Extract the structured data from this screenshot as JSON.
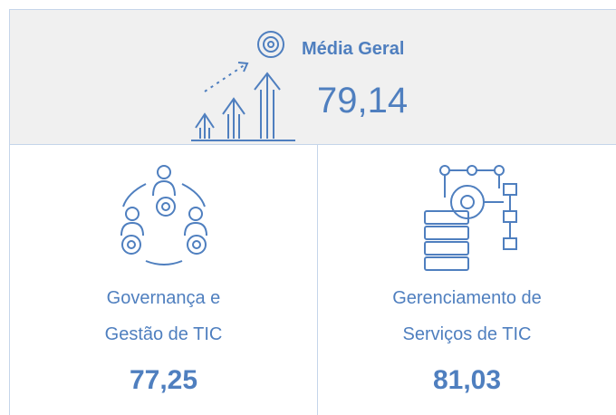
{
  "header": {
    "title": "Média Geral",
    "value": "79,14"
  },
  "cards": [
    {
      "label_lines": [
        "Governança e",
        "Gestão de TIC"
      ],
      "value": "77,25"
    },
    {
      "label_lines": [
        "Gerenciamento de",
        "Serviços de TIC"
      ],
      "value": "81,03"
    }
  ]
}
